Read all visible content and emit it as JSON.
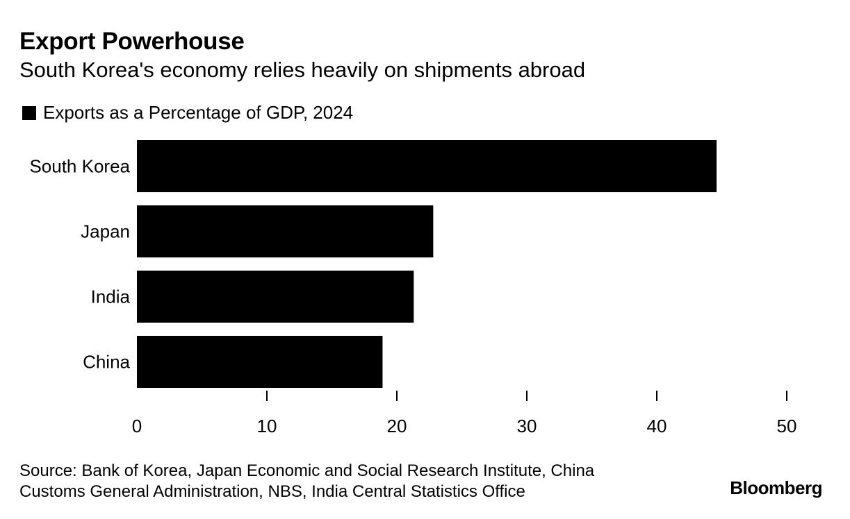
{
  "header": {
    "title": "Export Powerhouse",
    "subtitle": "South Korea's economy relies heavily on shipments abroad"
  },
  "legend": {
    "label": "Exports as a Percentage of GDP, 2024"
  },
  "footer": {
    "source_line1": "Source: Bank of Korea, Japan Economic and Social Research Institute, China",
    "source_line2": "Customs General Administration, NBS, India Central Statistics Office",
    "brand": "Bloomberg"
  },
  "colors": {
    "bar": "#000000",
    "text": "#000000",
    "background": "#ffffff"
  },
  "chart_data": {
    "type": "bar",
    "orientation": "horizontal",
    "title": "Export Powerhouse",
    "subtitle": "South Korea's economy relies heavily on shipments abroad",
    "categories": [
      "South Korea",
      "Japan",
      "India",
      "China"
    ],
    "series": [
      {
        "name": "Exports as a Percentage of GDP, 2024",
        "values": [
          44.6,
          22.8,
          21.3,
          18.9
        ]
      }
    ],
    "xlim": [
      0,
      50
    ],
    "xticks": [
      0,
      10,
      20,
      30,
      40,
      50
    ],
    "xlabel": "",
    "ylabel": "",
    "grid": false,
    "legend_position": "top-left"
  }
}
